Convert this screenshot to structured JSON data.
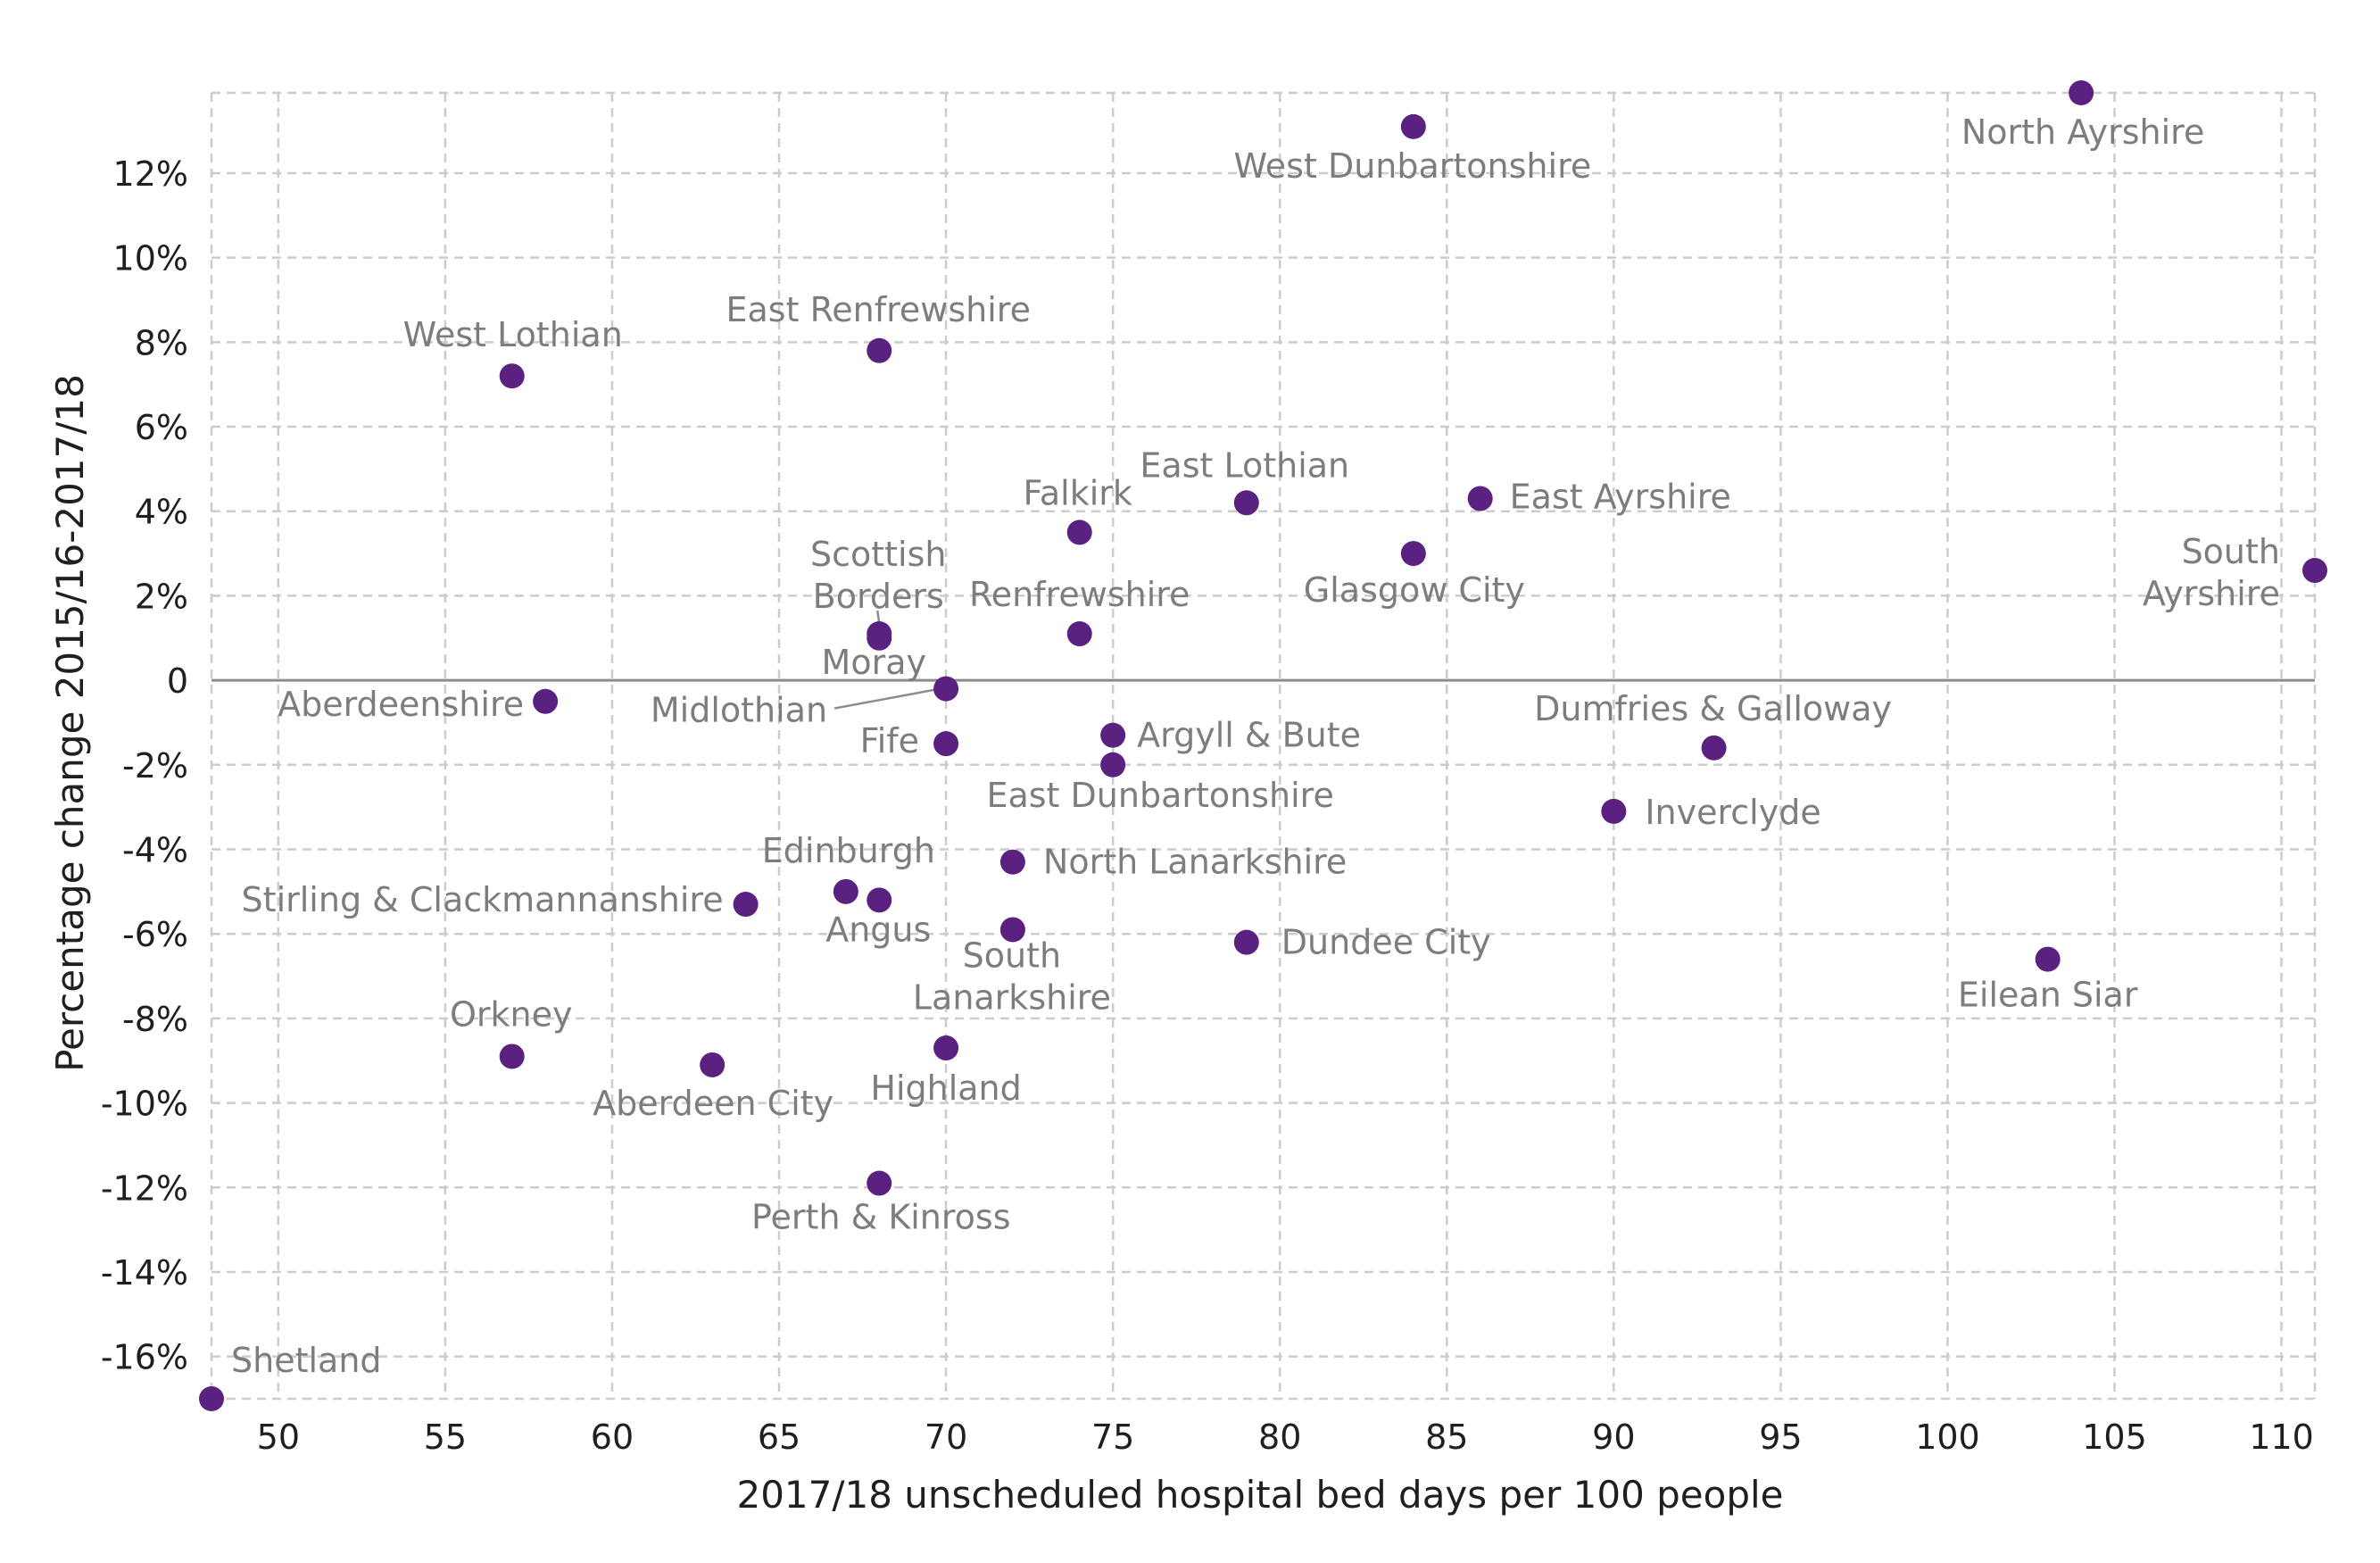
{
  "chart_data": {
    "type": "scatter",
    "xlabel": "2017/18 unscheduled hospital bed days per 100 people",
    "ylabel": "Percentage change 2015/16-2017/18",
    "xlim": [
      48,
      111
    ],
    "ylim": [
      -17.0,
      13.9
    ],
    "xticks": [
      {
        "value": 50,
        "label": "50"
      },
      {
        "value": 55,
        "label": "55"
      },
      {
        "value": 60,
        "label": "60"
      },
      {
        "value": 65,
        "label": "65"
      },
      {
        "value": 70,
        "label": "70"
      },
      {
        "value": 75,
        "label": "75"
      },
      {
        "value": 80,
        "label": "80"
      },
      {
        "value": 85,
        "label": "85"
      },
      {
        "value": 90,
        "label": "90"
      },
      {
        "value": 95,
        "label": "95"
      },
      {
        "value": 100,
        "label": "100"
      },
      {
        "value": 105,
        "label": "105"
      },
      {
        "value": 110,
        "label": "110"
      }
    ],
    "yticks": [
      {
        "value": 12,
        "label": "12%"
      },
      {
        "value": 10,
        "label": "10%"
      },
      {
        "value": 8,
        "label": "8%"
      },
      {
        "value": 6,
        "label": "6%"
      },
      {
        "value": 4,
        "label": "4%"
      },
      {
        "value": 2,
        "label": "2%"
      },
      {
        "value": 0,
        "label": "0"
      },
      {
        "value": -2,
        "label": "-2%"
      },
      {
        "value": -4,
        "label": "-4%"
      },
      {
        "value": -6,
        "label": "-6%"
      },
      {
        "value": -8,
        "label": "-8%"
      },
      {
        "value": -10,
        "label": "-10%"
      },
      {
        "value": -12,
        "label": "-12%"
      },
      {
        "value": -14,
        "label": "-14%"
      },
      {
        "value": -16,
        "label": "-16%"
      }
    ],
    "grid": true,
    "grid_style": "dashed",
    "zero_line": true,
    "colors": {
      "points": "#5b2180",
      "point_labels": "#7d7d7d",
      "grid": "#cccccc",
      "zero_line": "#8c8c8c",
      "axis_text": "#1f1f1f"
    },
    "points": [
      {
        "label": [
          "Shetland"
        ],
        "x": 48,
        "y": -17.0
      },
      {
        "label": [
          "North Ayrshire"
        ],
        "x": 104,
        "y": 13.9
      },
      {
        "label": [
          "West Dunbartonshire"
        ],
        "x": 84,
        "y": 13.1
      },
      {
        "label": [
          "West Lothian"
        ],
        "x": 57,
        "y": 7.2
      },
      {
        "label": [
          "East Renfrewshire"
        ],
        "x": 68,
        "y": 7.8
      },
      {
        "label": [
          "Falkirk"
        ],
        "x": 74,
        "y": 3.5
      },
      {
        "label": [
          "East Lothian"
        ],
        "x": 79,
        "y": 4.2
      },
      {
        "label": [
          "East Ayrshire"
        ],
        "x": 86,
        "y": 4.3
      },
      {
        "label": [
          "Glasgow City"
        ],
        "x": 84,
        "y": 3.0
      },
      {
        "label": [
          "South",
          "Ayrshire"
        ],
        "x": 111,
        "y": 2.6
      },
      {
        "label": [
          "Scottish",
          "Borders"
        ],
        "x": 68,
        "y": 1.1
      },
      {
        "label": [
          "Moray"
        ],
        "x": 68,
        "y": 1.0
      },
      {
        "label": [
          "Renfrewshire"
        ],
        "x": 74,
        "y": 1.1
      },
      {
        "label": [
          "Midlothian"
        ],
        "x": 70,
        "y": -0.2
      },
      {
        "label": [
          "Aberdeenshire"
        ],
        "x": 58,
        "y": -0.5
      },
      {
        "label": [
          "Fife"
        ],
        "x": 70,
        "y": -1.5
      },
      {
        "label": [
          "Argyll & Bute"
        ],
        "x": 75,
        "y": -1.3
      },
      {
        "label": [
          "East Dunbartonshire"
        ],
        "x": 75,
        "y": -2.0
      },
      {
        "label": [
          "Dumfries & Galloway"
        ],
        "x": 93,
        "y": -1.6
      },
      {
        "label": [
          "Inverclyde"
        ],
        "x": 90,
        "y": -3.1
      },
      {
        "label": [
          "North Lanarkshire"
        ],
        "x": 72,
        "y": -4.3
      },
      {
        "label": [
          "Edinburgh"
        ],
        "x": 67,
        "y": -5.0
      },
      {
        "label": [
          "Angus"
        ],
        "x": 68,
        "y": -5.2
      },
      {
        "label": [
          "Stirling & Clackmannanshire"
        ],
        "x": 64,
        "y": -5.3
      },
      {
        "label": [
          "South",
          "Lanarkshire"
        ],
        "x": 72,
        "y": -5.9
      },
      {
        "label": [
          "Dundee City"
        ],
        "x": 79,
        "y": -6.2
      },
      {
        "label": [
          "Eilean Siar"
        ],
        "x": 103,
        "y": -6.6
      },
      {
        "label": [
          "Orkney"
        ],
        "x": 57,
        "y": -8.9
      },
      {
        "label": [
          "Aberdeen City"
        ],
        "x": 63,
        "y": -9.1
      },
      {
        "label": [
          "Highland"
        ],
        "x": 70,
        "y": -8.7
      },
      {
        "label": [
          "Perth & Kinross"
        ],
        "x": 68,
        "y": -11.9
      }
    ]
  }
}
